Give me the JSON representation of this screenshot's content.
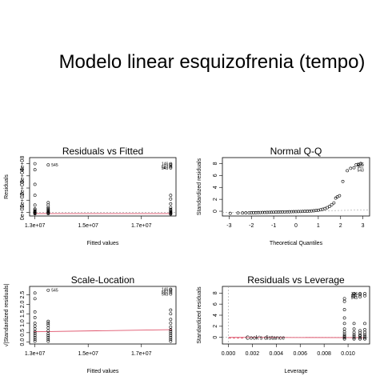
{
  "main_title": "Modelo linear esquizofrenia (tempo)",
  "colors": {
    "smooth": "#df536b",
    "ref": "#9e9e9e",
    "ink": "#000000"
  },
  "chart_data": [
    {
      "type": "scatter",
      "title": "Residuals vs Fitted",
      "xlabel": "Fitted values",
      "ylabel": "Residuals",
      "xlim": [
        12800000,
        18300000
      ],
      "ylim": [
        -30000000,
        450000000
      ],
      "xticks": [
        {
          "v": 13000000,
          "label": "1.3e+07"
        },
        {
          "v": 15000000,
          "label": "1.5e+07"
        },
        {
          "v": 17000000,
          "label": "1.7e+07"
        }
      ],
      "yticks": [
        {
          "v": 0,
          "label": "0e+00"
        },
        {
          "v": 100000000,
          "label": "1e+08"
        },
        {
          "v": 200000000,
          "label": "2e+08"
        },
        {
          "v": 300000000,
          "label": "3e+08"
        },
        {
          "v": 400000000,
          "label": "4e+08"
        }
      ],
      "hline": 0,
      "groups": [
        {
          "x": 13000000,
          "y": [
            -12000000,
            -8000000,
            -4000000,
            0,
            4000000,
            10000000,
            20000000,
            28000000,
            60000000,
            140000000,
            230000000,
            350000000,
            400000000
          ]
        },
        {
          "x": 13500000,
          "y": [
            -10000000,
            -6000000,
            -2000000,
            3000000,
            8000000,
            15000000,
            22000000,
            30000000,
            40000000,
            60000000,
            80000000,
            390000000
          ]
        },
        {
          "x": 18100000,
          "y": [
            -14000000,
            -10000000,
            -6000000,
            -2000000,
            2000000,
            8000000,
            15000000,
            25000000,
            40000000,
            70000000,
            110000000,
            140000000,
            365000000,
            375000000,
            390000000,
            400000000
          ]
        }
      ],
      "smooth": [
        [
          12950000,
          -10000000
        ],
        [
          18150000,
          -10000000
        ]
      ],
      "labels": [
        {
          "x": 13500000,
          "y": 390000000,
          "text": "545"
        },
        {
          "x": 18100000,
          "y": 400000000,
          "text": "146"
        },
        {
          "x": 18100000,
          "y": 375000000,
          "text": "587"
        },
        {
          "x": 18100000,
          "y": 365000000,
          "text": "543"
        }
      ]
    },
    {
      "type": "scatter",
      "title": "Normal Q-Q",
      "xlabel": "Theoretical Quantiles",
      "ylabel": "Standardized residuals",
      "xlim": [
        -3.3,
        3.3
      ],
      "ylim": [
        -0.8,
        9
      ],
      "xticks": [
        {
          "v": -3,
          "label": "-3"
        },
        {
          "v": -2,
          "label": "-2"
        },
        {
          "v": -1,
          "label": "-1"
        },
        {
          "v": 0,
          "label": "0"
        },
        {
          "v": 1,
          "label": "1"
        },
        {
          "v": 2,
          "label": "2"
        },
        {
          "v": 3,
          "label": "3"
        }
      ],
      "yticks": [
        {
          "v": 0,
          "label": "0"
        },
        {
          "v": 2,
          "label": "2"
        },
        {
          "v": 4,
          "label": "4"
        },
        {
          "v": 6,
          "label": "6"
        },
        {
          "v": 8,
          "label": "8"
        }
      ],
      "refline": [
        [
          -3.3,
          -0.22
        ],
        [
          3.3,
          0.22
        ]
      ],
      "points": [
        [
          -2.95,
          -0.35
        ],
        [
          -2.6,
          -0.3
        ],
        [
          -2.4,
          -0.28
        ],
        [
          -2.25,
          -0.27
        ],
        [
          -2.1,
          -0.26
        ],
        [
          -2.0,
          -0.25
        ],
        [
          -1.9,
          -0.24
        ],
        [
          -1.8,
          -0.23
        ],
        [
          -1.7,
          -0.22
        ],
        [
          -1.6,
          -0.21
        ],
        [
          -1.5,
          -0.2
        ],
        [
          -1.4,
          -0.2
        ],
        [
          -1.3,
          -0.19
        ],
        [
          -1.2,
          -0.18
        ],
        [
          -1.1,
          -0.17
        ],
        [
          -1.0,
          -0.16
        ],
        [
          -0.9,
          -0.15
        ],
        [
          -0.8,
          -0.14
        ],
        [
          -0.7,
          -0.13
        ],
        [
          -0.6,
          -0.12
        ],
        [
          -0.5,
          -0.11
        ],
        [
          -0.4,
          -0.1
        ],
        [
          -0.3,
          -0.09
        ],
        [
          -0.2,
          -0.08
        ],
        [
          -0.1,
          -0.07
        ],
        [
          0.0,
          -0.06
        ],
        [
          0.1,
          -0.05
        ],
        [
          0.2,
          -0.04
        ],
        [
          0.3,
          -0.03
        ],
        [
          0.4,
          -0.01
        ],
        [
          0.5,
          0.0
        ],
        [
          0.6,
          0.02
        ],
        [
          0.7,
          0.05
        ],
        [
          0.8,
          0.08
        ],
        [
          0.9,
          0.12
        ],
        [
          1.0,
          0.17
        ],
        [
          1.1,
          0.24
        ],
        [
          1.2,
          0.33
        ],
        [
          1.3,
          0.45
        ],
        [
          1.4,
          0.6
        ],
        [
          1.5,
          0.8
        ],
        [
          1.6,
          1.1
        ],
        [
          1.7,
          1.4
        ],
        [
          1.78,
          2.2
        ],
        [
          1.85,
          2.4
        ],
        [
          1.95,
          2.6
        ],
        [
          2.1,
          5.0
        ],
        [
          2.3,
          6.8
        ],
        [
          2.45,
          7.2
        ],
        [
          2.6,
          7.3
        ],
        [
          2.7,
          7.8
        ],
        [
          2.8,
          7.8
        ],
        [
          2.9,
          8.0
        ]
      ],
      "labels": [
        {
          "x": 2.6,
          "y": 7.9,
          "text": "146"
        },
        {
          "x": 2.6,
          "y": 7.5,
          "text": "587"
        },
        {
          "x": 2.6,
          "y": 6.9,
          "text": "543"
        }
      ]
    },
    {
      "type": "scatter",
      "title": "Scale-Location",
      "xlabel": "Fitted values",
      "ylabel": "√|Standardized residuals|",
      "xlim": [
        12800000,
        18300000
      ],
      "ylim": [
        -0.1,
        2.95
      ],
      "xticks": [
        {
          "v": 13000000,
          "label": "1.3e+07"
        },
        {
          "v": 15000000,
          "label": "1.5e+07"
        },
        {
          "v": 17000000,
          "label": "1.7e+07"
        }
      ],
      "yticks": [
        {
          "v": 0.0,
          "label": "0.0"
        },
        {
          "v": 0.5,
          "label": "0.5"
        },
        {
          "v": 1.0,
          "label": "1.0"
        },
        {
          "v": 1.5,
          "label": "1.5"
        },
        {
          "v": 2.0,
          "label": "2.0"
        },
        {
          "v": 2.5,
          "label": "2.5"
        }
      ],
      "groups": [
        {
          "x": 13000000,
          "y": [
            0.05,
            0.15,
            0.25,
            0.35,
            0.45,
            0.55,
            0.7,
            0.85,
            1.0,
            1.3,
            1.6,
            2.3,
            2.6
          ]
        },
        {
          "x": 13500000,
          "y": [
            0.05,
            0.15,
            0.25,
            0.35,
            0.45,
            0.6,
            0.75,
            0.9,
            1.0,
            1.1,
            2.75
          ]
        },
        {
          "x": 18100000,
          "y": [
            0.05,
            0.15,
            0.25,
            0.35,
            0.45,
            0.55,
            0.65,
            0.8,
            1.0,
            1.2,
            1.5,
            1.7,
            2.55,
            2.65,
            2.75,
            2.8
          ]
        }
      ],
      "smooth": [
        [
          12950000,
          0.55
        ],
        [
          13500000,
          0.56
        ],
        [
          18150000,
          0.66
        ]
      ],
      "labels": [
        {
          "x": 13500000,
          "y": 2.75,
          "text": "545"
        },
        {
          "x": 18100000,
          "y": 2.8,
          "text": "146"
        },
        {
          "x": 18100000,
          "y": 2.65,
          "text": "587"
        },
        {
          "x": 18100000,
          "y": 2.55,
          "text": "543"
        }
      ]
    },
    {
      "type": "scatter",
      "title": "Residuals vs Leverage",
      "xlabel": "Leverage",
      "ylabel": "Standardized residuals",
      "xlim": [
        -0.0005,
        0.0118
      ],
      "ylim": [
        -1.2,
        9.2
      ],
      "xticks": [
        {
          "v": 0.0,
          "label": "0.000"
        },
        {
          "v": 0.002,
          "label": "0.002"
        },
        {
          "v": 0.004,
          "label": "0.004"
        },
        {
          "v": 0.006,
          "label": "0.006"
        },
        {
          "v": 0.008,
          "label": "0.008"
        },
        {
          "v": 0.01,
          "label": "0.010"
        }
      ],
      "yticks": [
        {
          "v": 0,
          "label": "0"
        },
        {
          "v": 2,
          "label": "2"
        },
        {
          "v": 4,
          "label": "4"
        },
        {
          "v": 6,
          "label": "6"
        },
        {
          "v": 8,
          "label": "8"
        }
      ],
      "hline": 0,
      "vline": 0,
      "groups": [
        {
          "x": 0.0097,
          "y": [
            -0.3,
            -0.1,
            0.1,
            0.3,
            0.6,
            1.0,
            1.5,
            2.5,
            3.5,
            5.0,
            6.5,
            7.0
          ]
        },
        {
          "x": 0.0105,
          "y": [
            -0.3,
            -0.1,
            0.2,
            0.5,
            0.9,
            1.5,
            2.5,
            7.5,
            7.9
          ]
        },
        {
          "x": 0.011,
          "y": [
            -0.3,
            -0.1,
            0.2,
            0.4,
            0.8,
            1.2,
            7.3,
            7.7,
            7.9
          ]
        },
        {
          "x": 0.0114,
          "y": [
            -0.3,
            -0.1,
            0.2,
            0.5,
            0.9,
            1.4,
            2.5,
            7.5,
            7.9
          ]
        }
      ],
      "smooth": [
        [
          0.0,
          0.0
        ],
        [
          0.0114,
          -0.05
        ]
      ],
      "legend": "Cook's distance",
      "labels": [
        {
          "x": 0.011,
          "y": 7.9,
          "text": "146"
        },
        {
          "x": 0.011,
          "y": 7.55,
          "text": "587"
        },
        {
          "x": 0.011,
          "y": 7.2,
          "text": "543"
        }
      ]
    }
  ]
}
